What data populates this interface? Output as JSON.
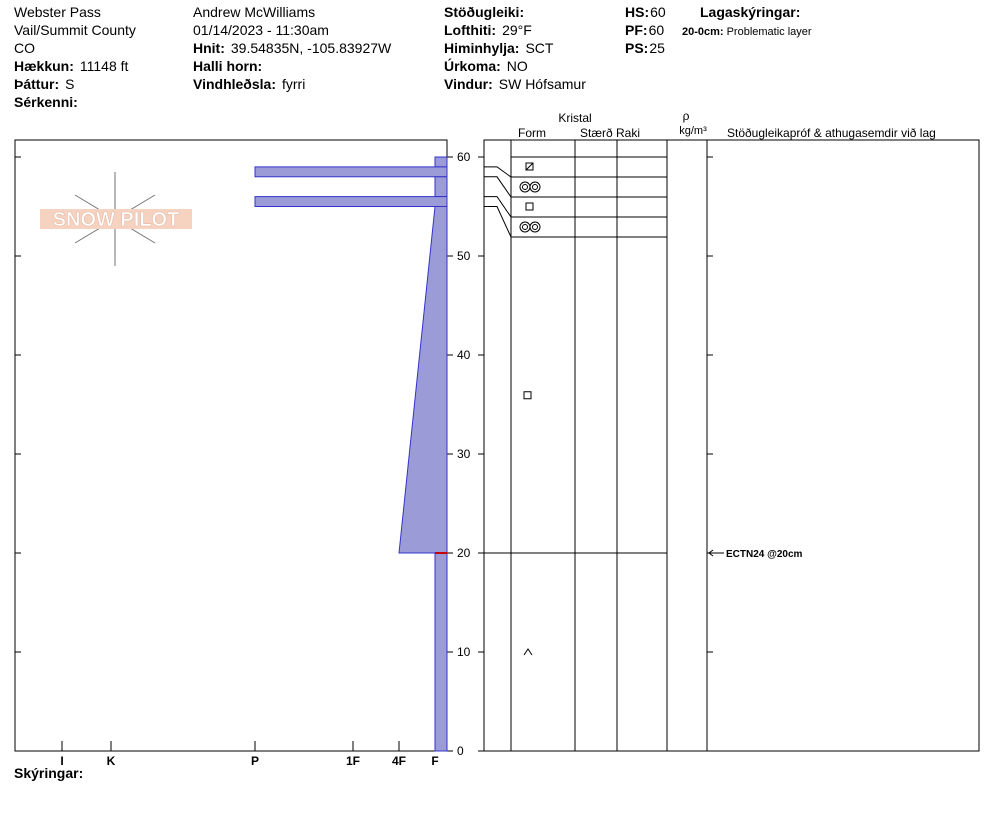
{
  "header": {
    "col1": [
      "Webster Pass",
      "Vail/Summit County",
      "CO"
    ],
    "fields1": [
      {
        "label": "Hækkun:",
        "value": "11148 ft"
      },
      {
        "label": "Þáttur:",
        "value": "S"
      },
      {
        "label": "Sérkenni:",
        "value": ""
      }
    ],
    "col2": [
      "Andrew McWilliams",
      "01/14/2023 - 11:30am"
    ],
    "fields2": [
      {
        "label": "Hnit:",
        "value": "39.54835N, -105.83927W"
      },
      {
        "label": "Halli horn:",
        "value": ""
      },
      {
        "label": "Vindhleðsla:",
        "value": "fyrri"
      }
    ],
    "fields3": [
      {
        "label": "Stöðugleiki:",
        "value": ""
      },
      {
        "label": "Lofthiti:",
        "value": "29°F"
      },
      {
        "label": "Himinhylja:",
        "value": "SCT"
      },
      {
        "label": "Úrkoma:",
        "value": "NO"
      },
      {
        "label": "Vindur:",
        "value": "SW Hófsamur"
      }
    ],
    "fields4": [
      {
        "label": "HS:",
        "value": "60"
      },
      {
        "label": "PF:",
        "value": "60"
      },
      {
        "label": "PS:",
        "value": "25"
      }
    ],
    "notes_title": "Lagaskýringar:",
    "notes": [
      {
        "label": "20-0cm:",
        "value": "Problematic layer"
      }
    ]
  },
  "logo": "SNOW PILOT",
  "columns": {
    "crystal": "Kristal",
    "form": "Form",
    "size": "Stærð",
    "moisture": "Raki",
    "density": "ρ",
    "density_unit": "kg/m³",
    "tests": "Stöðugleikapróf & athugasemdir við lag"
  },
  "chart_data": {
    "type": "snow-profile",
    "depth_lim": [
      0,
      60
    ],
    "depth_ticks": [
      0,
      10,
      20,
      30,
      40,
      50,
      60
    ],
    "hardness_axis": [
      "I",
      "K",
      "P",
      "1F",
      "4F",
      "F"
    ],
    "layers": [
      {
        "top": 60,
        "bottom": 59,
        "hardness": "F"
      },
      {
        "top": 59,
        "bottom": 58,
        "hardness": "P"
      },
      {
        "top": 58,
        "bottom": 56,
        "hardness": "F"
      },
      {
        "top": 56,
        "bottom": 55,
        "hardness": "P"
      },
      {
        "top": 55,
        "bottom": 20,
        "hardness_top": "F",
        "hardness_bottom": "4F"
      },
      {
        "top": 20,
        "bottom": 0,
        "hardness": "F"
      }
    ],
    "tests": [
      {
        "label": "ECTN24 @20cm",
        "depth": 20
      }
    ],
    "color": "#9b9bd8"
  },
  "footer": "Skýringar:"
}
